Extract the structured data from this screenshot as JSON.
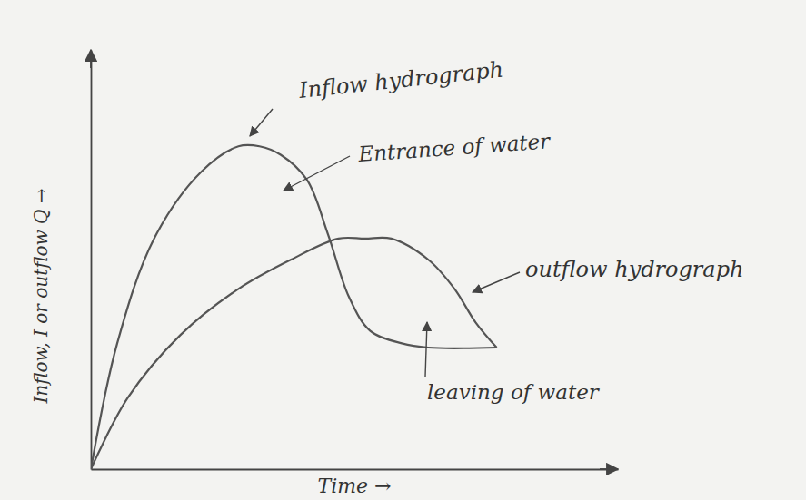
{
  "chart_data": {
    "type": "line",
    "xlabel": "Time →",
    "ylabel": "Inflow, I or outflow Q →",
    "xlim": [
      0,
      10
    ],
    "ylim": [
      0,
      10
    ],
    "tick_labels": false,
    "grid": false,
    "series": [
      {
        "name": "Inflow hydrograph",
        "color": "#555555",
        "x": [
          0,
          0.5,
          1.2,
          2.1,
          2.8,
          3.2,
          3.6,
          4.1,
          4.5,
          4.9,
          5.3,
          5.9,
          6.4,
          7.7
        ],
        "values": [
          0,
          3.0,
          5.5,
          7.1,
          7.7,
          7.7,
          7.5,
          6.9,
          5.6,
          4.1,
          3.3,
          3.0,
          2.9,
          2.9
        ]
      },
      {
        "name": "outflow hydrograph",
        "color": "#555555",
        "x": [
          0,
          0.7,
          1.7,
          2.8,
          3.8,
          4.7,
          5.2,
          5.7,
          6.4,
          6.9,
          7.3,
          7.7
        ],
        "values": [
          0,
          1.7,
          3.2,
          4.3,
          5.0,
          5.5,
          5.5,
          5.5,
          5.0,
          4.3,
          3.5,
          2.9
        ]
      }
    ],
    "annotations": [
      "Entrance of water",
      "leaving of water"
    ]
  }
}
